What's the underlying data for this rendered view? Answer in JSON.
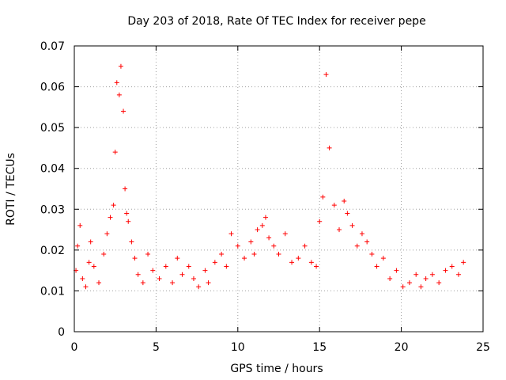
{
  "chart_data": {
    "type": "scatter",
    "title": "Day 203 of 2018, Rate Of TEC Index for receiver pepe",
    "xlabel": "GPS time / hours",
    "ylabel": "ROTI / TECUs",
    "xlim": [
      0,
      25
    ],
    "ylim": [
      0,
      0.07
    ],
    "xticks": [
      0,
      5,
      10,
      15,
      20,
      25
    ],
    "xtick_labels": [
      "0",
      "5",
      "10",
      "15",
      "20",
      "25"
    ],
    "yticks": [
      0,
      0.01,
      0.02,
      0.03,
      0.04,
      0.05,
      0.06,
      0.07
    ],
    "ytick_labels": [
      "0",
      "0.01",
      "0.02",
      "0.03",
      "0.04",
      "0.05",
      "0.06",
      "0.07"
    ],
    "grid": true,
    "marker": "plus",
    "color": "#ff0000",
    "series": [
      {
        "name": "ROTI",
        "x": [
          0.1,
          0.2,
          0.35,
          0.5,
          0.7,
          0.9,
          1.0,
          1.2,
          1.5,
          1.8,
          2.0,
          2.2,
          2.4,
          2.5,
          2.6,
          2.75,
          2.85,
          3.0,
          3.1,
          3.2,
          3.3,
          3.5,
          3.7,
          3.9,
          4.2,
          4.5,
          4.8,
          5.2,
          5.6,
          6.0,
          6.3,
          6.6,
          7.0,
          7.3,
          7.6,
          8.0,
          8.2,
          8.6,
          9.0,
          9.3,
          9.6,
          10.0,
          10.4,
          10.8,
          11.0,
          11.2,
          11.5,
          11.7,
          11.9,
          12.2,
          12.5,
          12.9,
          13.3,
          13.7,
          14.1,
          14.5,
          14.8,
          15.0,
          15.2,
          15.4,
          15.6,
          15.9,
          16.2,
          16.5,
          16.7,
          17.0,
          17.3,
          17.6,
          17.9,
          18.2,
          18.5,
          18.9,
          19.3,
          19.7,
          20.1,
          20.5,
          20.9,
          21.2,
          21.5,
          21.9,
          22.3,
          22.7,
          23.1,
          23.5,
          23.8
        ],
        "y": [
          0.015,
          0.021,
          0.026,
          0.013,
          0.011,
          0.017,
          0.022,
          0.016,
          0.012,
          0.019,
          0.024,
          0.028,
          0.031,
          0.044,
          0.061,
          0.058,
          0.065,
          0.054,
          0.035,
          0.029,
          0.027,
          0.022,
          0.018,
          0.014,
          0.012,
          0.019,
          0.015,
          0.013,
          0.016,
          0.012,
          0.018,
          0.014,
          0.016,
          0.013,
          0.011,
          0.015,
          0.012,
          0.017,
          0.019,
          0.016,
          0.024,
          0.021,
          0.018,
          0.022,
          0.019,
          0.025,
          0.026,
          0.028,
          0.023,
          0.021,
          0.019,
          0.024,
          0.017,
          0.018,
          0.021,
          0.017,
          0.016,
          0.027,
          0.033,
          0.063,
          0.045,
          0.031,
          0.025,
          0.032,
          0.029,
          0.026,
          0.021,
          0.024,
          0.022,
          0.019,
          0.016,
          0.018,
          0.013,
          0.015,
          0.011,
          0.012,
          0.014,
          0.011,
          0.013,
          0.014,
          0.012,
          0.015,
          0.016,
          0.014,
          0.017
        ]
      }
    ]
  }
}
